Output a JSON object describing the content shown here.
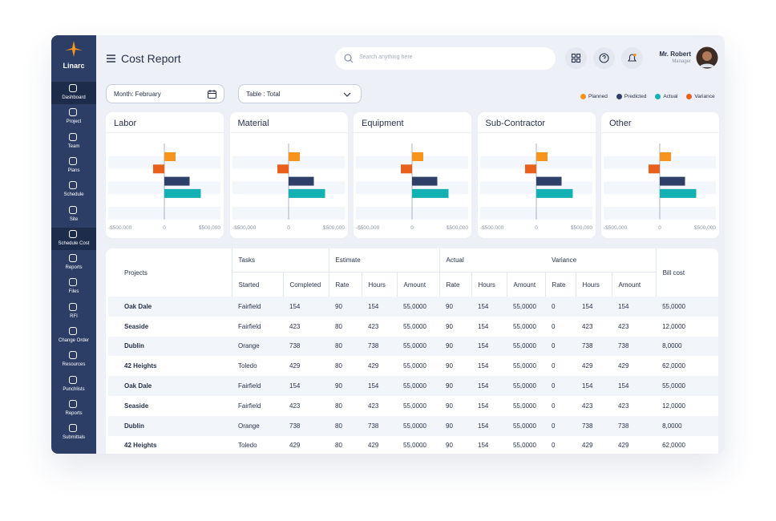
{
  "app": {
    "logo": "Linarc",
    "title": "Cost Report",
    "search_placeholder": "Search anything here",
    "user": {
      "name": "Mr. Robert",
      "role": "Manager"
    }
  },
  "sidebar": [
    "Dashboard",
    "Project",
    "Team",
    "Plans",
    "Schedule",
    "Site",
    "Schedule Cost",
    "Reports",
    "Files",
    "RFI",
    "Change Order",
    "Resources",
    "Punchlists",
    "Reports",
    "Submittals"
  ],
  "filters": {
    "month": "Month: February",
    "table": "Table : Total"
  },
  "legend": [
    {
      "name": "Planned",
      "color": "#f7941d"
    },
    {
      "name": "Predicted",
      "color": "#2e4068"
    },
    {
      "name": "Actual",
      "color": "#14b1b4"
    },
    {
      "name": "Variance",
      "color": "#e8601c"
    }
  ],
  "chart_data": [
    {
      "type": "bar",
      "title": "Labor",
      "values": [
        100000,
        225000,
        325000,
        -100000
      ],
      "xlim": [
        -500000,
        500000
      ],
      "xticks": [
        {
          "value": -500000,
          "label": "-$500,000"
        },
        0,
        {
          "value": 500000,
          "label": "$500,000"
        }
      ]
    },
    {
      "type": "bar",
      "title": "Material",
      "values": [
        100000,
        225000,
        325000,
        -100000
      ],
      "xlim": [
        -500000,
        500000
      ],
      "xticks": [
        {
          "value": -500000,
          "label": "-$500,000"
        },
        0,
        {
          "value": 500000,
          "label": "$500,000"
        }
      ]
    },
    {
      "type": "bar",
      "title": "Equipment",
      "values": [
        100000,
        225000,
        325000,
        -100000
      ],
      "xlim": [
        -500000,
        500000
      ],
      "xticks": [
        {
          "value": -500000,
          "label": "-$500,000"
        },
        0,
        {
          "value": 500000,
          "label": "$500,000"
        }
      ]
    },
    {
      "type": "bar",
      "title": "Sub-Contractor",
      "values": [
        100000,
        225000,
        325000,
        -100000
      ],
      "xlim": [
        -500000,
        500000
      ],
      "xticks": [
        {
          "value": -500000,
          "label": "-$500,000"
        },
        0,
        {
          "value": 500000,
          "label": "$500,000"
        }
      ]
    },
    {
      "type": "bar",
      "title": "Other",
      "values": [
        100000,
        225000,
        325000,
        -100000
      ],
      "xlim": [
        -500000,
        500000
      ],
      "xticks": [
        {
          "value": -500000,
          "label": "-$500,000"
        },
        0,
        {
          "value": 500000,
          "label": "$500,000"
        }
      ]
    }
  ],
  "table": {
    "groups": [
      "Projects",
      "Tasks",
      "Estimate",
      "Actual",
      "Variance",
      "Bill cost"
    ],
    "columns": [
      "Started",
      "Completed",
      "Rate",
      "Hours",
      "Amount",
      "Rate",
      "Hours",
      "Amount",
      "Rate",
      "Hours",
      "Amount"
    ],
    "rows": [
      [
        "Oak Dale",
        "Fairfield",
        "154",
        "90",
        "154",
        "55,0000",
        "90",
        "154",
        "55,0000",
        "0",
        "154",
        "154",
        "55,0000"
      ],
      [
        "Seaside",
        "Fairfield",
        "423",
        "80",
        "423",
        "55,0000",
        "90",
        "154",
        "55,0000",
        "0",
        "423",
        "423",
        "12,0000"
      ],
      [
        "Dublin",
        "Orange",
        "738",
        "80",
        "738",
        "55,0000",
        "90",
        "154",
        "55,0000",
        "0",
        "738",
        "738",
        "8,0000"
      ],
      [
        "42 Heights",
        "Toledo",
        "429",
        "80",
        "429",
        "55,0000",
        "90",
        "154",
        "55,0000",
        "0",
        "429",
        "429",
        "62,0000"
      ],
      [
        "Oak Dale",
        "Fairfield",
        "154",
        "90",
        "154",
        "55,0000",
        "90",
        "154",
        "55,0000",
        "0",
        "154",
        "154",
        "55,0000"
      ],
      [
        "Seaside",
        "Fairfield",
        "423",
        "80",
        "423",
        "55,0000",
        "90",
        "154",
        "55,0000",
        "0",
        "423",
        "423",
        "12,0000"
      ],
      [
        "Dublin",
        "Orange",
        "738",
        "80",
        "738",
        "55,0000",
        "90",
        "154",
        "55,0000",
        "0",
        "738",
        "738",
        "8,0000"
      ],
      [
        "42 Heights",
        "Toledo",
        "429",
        "80",
        "429",
        "55,0000",
        "90",
        "154",
        "55,0000",
        "0",
        "429",
        "429",
        "62,0000"
      ]
    ]
  }
}
